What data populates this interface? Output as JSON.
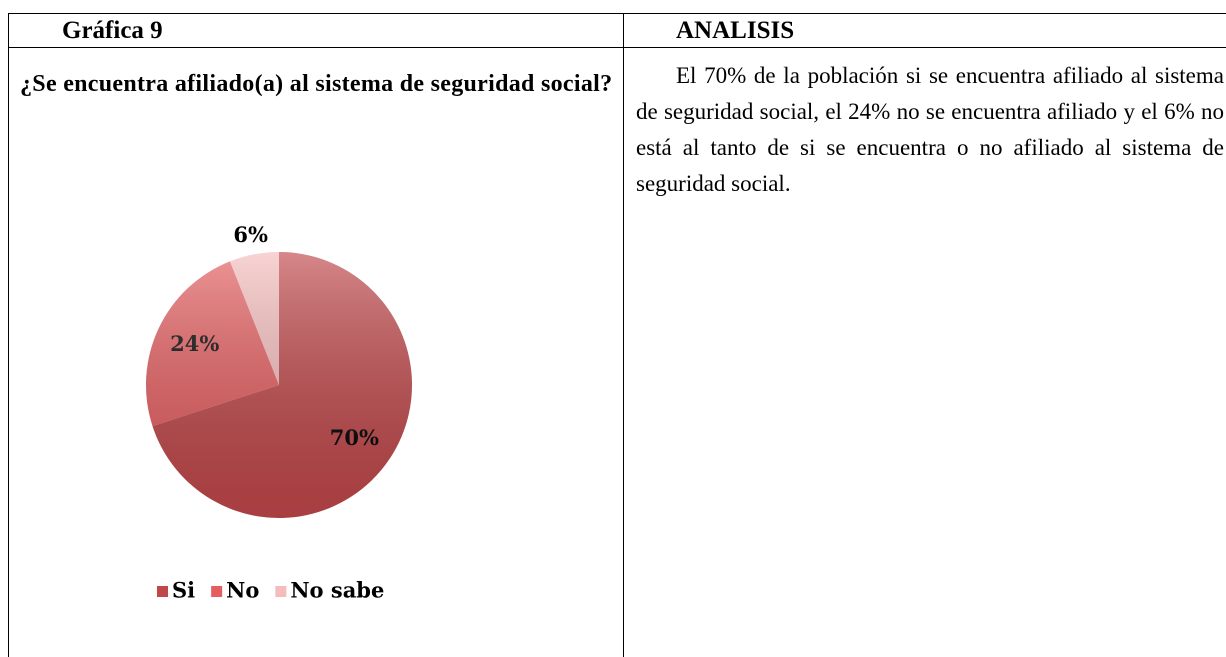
{
  "table": {
    "headers": [
      "Gráfica 9",
      "ANALISIS"
    ]
  },
  "question": "¿Se encuentra afiliado(a) al sistema de seguridad social?",
  "chart_data": {
    "type": "pie",
    "categories": [
      "Si",
      "No",
      "No sabe"
    ],
    "values": [
      70,
      24,
      6
    ],
    "value_labels": [
      "70%",
      "24%",
      "6%"
    ],
    "colors": [
      "#c0474a",
      "#e55d5f",
      "#f5bcbc"
    ]
  },
  "analysis": "El 70% de la población si se encuentra afiliado al sistema de seguridad social, el 24% no se encuentra afiliado y el 6% no está al tanto de si se encuentra o no afiliado al sistema de seguridad social."
}
